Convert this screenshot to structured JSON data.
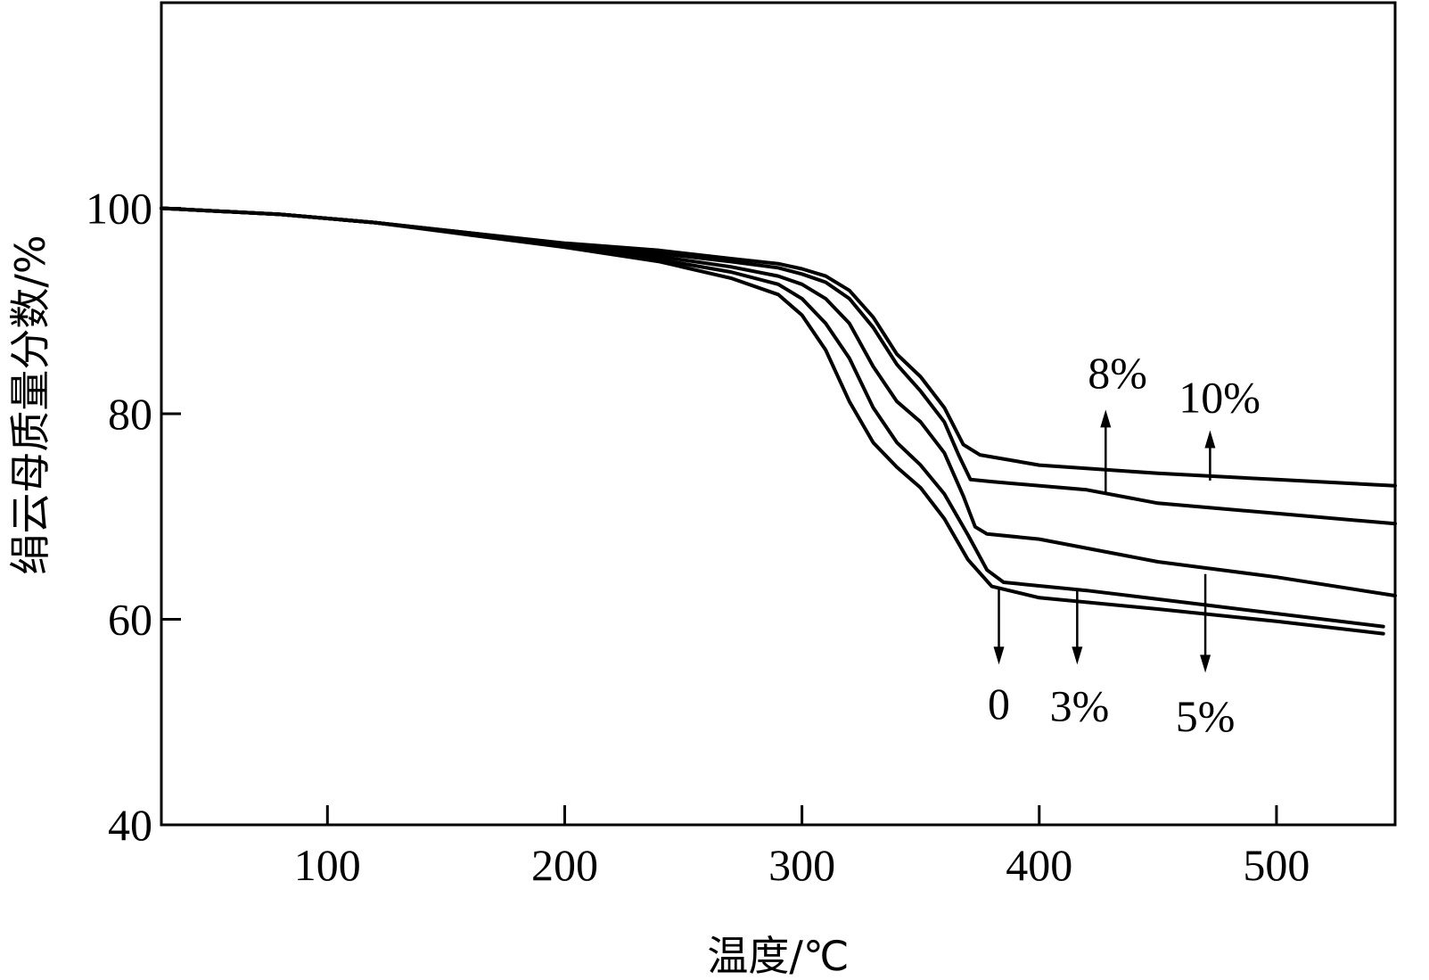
{
  "chart_data": {
    "type": "line",
    "title": "",
    "xlabel": "温度/℃",
    "ylabel": "绢云母质量分数/%",
    "xlim": [
      30,
      550
    ],
    "ylim": [
      40,
      120
    ],
    "x_ticks": [
      100,
      200,
      300,
      400,
      500
    ],
    "y_ticks": [
      40,
      60,
      80,
      100
    ],
    "grid": false,
    "series": [
      {
        "name": "0",
        "points": [
          [
            30,
            100
          ],
          [
            80,
            99.4
          ],
          [
            120,
            98.6
          ],
          [
            160,
            97.4
          ],
          [
            200,
            96.2
          ],
          [
            240,
            94.8
          ],
          [
            270,
            93.2
          ],
          [
            290,
            91.6
          ],
          [
            300,
            89.6
          ],
          [
            310,
            86.2
          ],
          [
            320,
            81.2
          ],
          [
            330,
            77.2
          ],
          [
            340,
            74.8
          ],
          [
            350,
            72.8
          ],
          [
            360,
            69.8
          ],
          [
            370,
            65.8
          ],
          [
            380,
            63.2
          ],
          [
            400,
            62.1
          ],
          [
            450,
            61.0
          ],
          [
            500,
            59.8
          ],
          [
            545,
            58.6
          ]
        ]
      },
      {
        "name": "3%",
        "points": [
          [
            30,
            100
          ],
          [
            80,
            99.4
          ],
          [
            120,
            98.6
          ],
          [
            160,
            97.5
          ],
          [
            200,
            96.3
          ],
          [
            240,
            95.0
          ],
          [
            270,
            93.8
          ],
          [
            290,
            92.6
          ],
          [
            300,
            91.2
          ],
          [
            310,
            88.8
          ],
          [
            320,
            85.4
          ],
          [
            330,
            80.6
          ],
          [
            340,
            77.2
          ],
          [
            350,
            75.0
          ],
          [
            360,
            72.2
          ],
          [
            370,
            68.2
          ],
          [
            378,
            64.8
          ],
          [
            385,
            63.6
          ],
          [
            420,
            62.8
          ],
          [
            470,
            61.4
          ],
          [
            545,
            59.3
          ]
        ]
      },
      {
        "name": "5%",
        "points": [
          [
            30,
            100
          ],
          [
            80,
            99.4
          ],
          [
            120,
            98.6
          ],
          [
            160,
            97.5
          ],
          [
            200,
            96.4
          ],
          [
            240,
            95.3
          ],
          [
            270,
            94.3
          ],
          [
            290,
            93.4
          ],
          [
            300,
            92.6
          ],
          [
            310,
            91.2
          ],
          [
            320,
            88.8
          ],
          [
            330,
            84.6
          ],
          [
            340,
            81.2
          ],
          [
            350,
            79.2
          ],
          [
            360,
            76.2
          ],
          [
            368,
            72.0
          ],
          [
            373,
            69.0
          ],
          [
            378,
            68.3
          ],
          [
            400,
            67.8
          ],
          [
            450,
            65.6
          ],
          [
            500,
            64.1
          ],
          [
            550,
            62.3
          ]
        ]
      },
      {
        "name": "8%",
        "points": [
          [
            30,
            100
          ],
          [
            80,
            99.4
          ],
          [
            120,
            98.6
          ],
          [
            160,
            97.6
          ],
          [
            200,
            96.5
          ],
          [
            240,
            95.6
          ],
          [
            270,
            94.8
          ],
          [
            290,
            94.2
          ],
          [
            300,
            93.6
          ],
          [
            310,
            92.8
          ],
          [
            320,
            91.2
          ],
          [
            330,
            88.4
          ],
          [
            340,
            84.8
          ],
          [
            350,
            82.2
          ],
          [
            360,
            79.2
          ],
          [
            366,
            76.0
          ],
          [
            371,
            73.6
          ],
          [
            380,
            73.4
          ],
          [
            420,
            72.6
          ],
          [
            450,
            71.3
          ],
          [
            500,
            70.3
          ],
          [
            550,
            69.3
          ]
        ]
      },
      {
        "name": "10%",
        "points": [
          [
            30,
            100
          ],
          [
            80,
            99.4
          ],
          [
            120,
            98.6
          ],
          [
            160,
            97.6
          ],
          [
            200,
            96.6
          ],
          [
            240,
            95.9
          ],
          [
            270,
            95.1
          ],
          [
            290,
            94.6
          ],
          [
            300,
            94.1
          ],
          [
            310,
            93.4
          ],
          [
            320,
            92.0
          ],
          [
            330,
            89.4
          ],
          [
            340,
            85.8
          ],
          [
            350,
            83.6
          ],
          [
            360,
            80.6
          ],
          [
            368,
            77.0
          ],
          [
            375,
            76.0
          ],
          [
            400,
            75.0
          ],
          [
            450,
            74.2
          ],
          [
            500,
            73.6
          ],
          [
            550,
            73.0
          ]
        ]
      }
    ],
    "annotations": [
      {
        "text": "0",
        "arrow_from": [
          383,
          63.0
        ],
        "arrow_to": [
          383,
          55.6
        ],
        "label_at": [
          383,
          51.8
        ]
      },
      {
        "text": "3%",
        "arrow_from": [
          416,
          62.8
        ],
        "arrow_to": [
          416,
          55.6
        ],
        "label_at": [
          417,
          51.6
        ]
      },
      {
        "text": "5%",
        "arrow_from": [
          470,
          64.4
        ],
        "arrow_to": [
          470,
          54.8
        ],
        "label_at": [
          470,
          50.6
        ]
      },
      {
        "text": "8%",
        "arrow_from": [
          428,
          72.3
        ],
        "arrow_to": [
          428,
          80.4
        ],
        "label_at": [
          433,
          84.0
        ]
      },
      {
        "text": "10%",
        "arrow_from": [
          472,
          73.5
        ],
        "arrow_to": [
          472,
          78.4
        ],
        "label_at": [
          476,
          81.6
        ]
      }
    ]
  }
}
